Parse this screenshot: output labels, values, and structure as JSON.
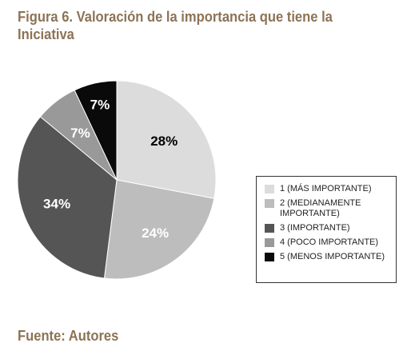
{
  "title": "Figura 6. Valoración de la importancia que tiene la Iniciativa",
  "source": "Fuente: Autores",
  "chart_data": {
    "type": "pie",
    "title": "Figura 6. Valoración de la importancia que tiene la Iniciativa",
    "categories": [
      "1 (MÁS IMPORTANTE)",
      "2 (MEDIANAMENTE IMPORTANTE)",
      "3 (IMPORTANTE)",
      "4 (POCO IMPORTANTE)",
      "5 (MENOS IMPORTANTE)"
    ],
    "values": [
      28,
      24,
      34,
      7,
      7
    ],
    "data_labels": [
      "28%",
      "24%",
      "34%",
      "7%",
      "7%"
    ],
    "colors": [
      "#dcdcdc",
      "#bdbdbd",
      "#555555",
      "#999999",
      "#0a0a0a"
    ],
    "label_colors": [
      "#000000",
      "#ffffff",
      "#ffffff",
      "#ffffff",
      "#ffffff"
    ],
    "legend_position": "right"
  }
}
